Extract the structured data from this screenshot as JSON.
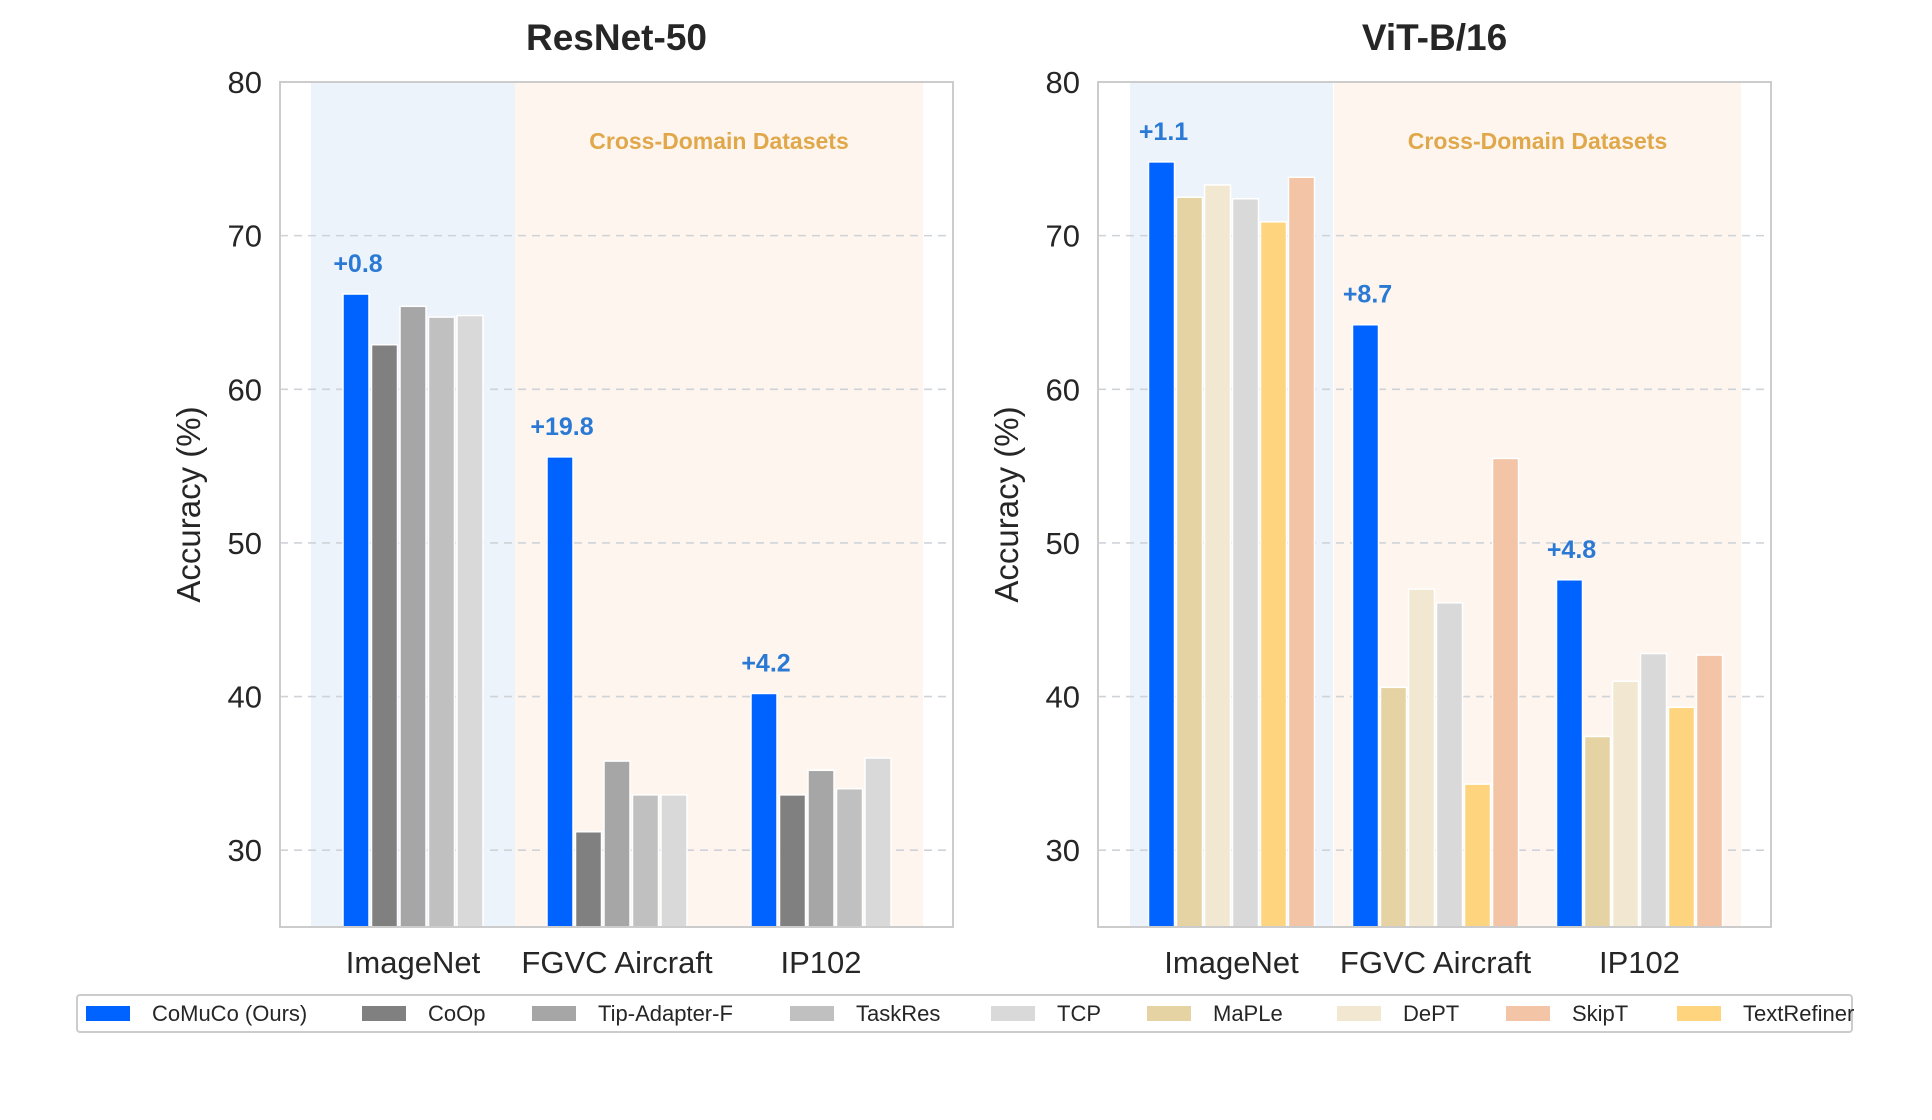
{
  "chart_data": [
    {
      "type": "bar",
      "title": "ResNet-50",
      "ylabel": "Accuracy (%)",
      "xlabel": "",
      "ylim": [
        25,
        80
      ],
      "yticks": [
        30,
        40,
        50,
        60,
        70,
        80
      ],
      "grid": true,
      "categories": [
        "ImageNet",
        "FGVC Aircraft",
        "IP102"
      ],
      "region_label": "Cross-Domain Datasets",
      "series": [
        {
          "name": "CoMuCo (Ours)",
          "values": [
            66.2,
            55.6,
            40.2
          ]
        },
        {
          "name": "CoOp",
          "values": [
            62.9,
            31.2,
            33.6
          ]
        },
        {
          "name": "Tip-Adapter-F",
          "values": [
            65.4,
            35.8,
            35.2
          ]
        },
        {
          "name": "TaskRes",
          "values": [
            64.7,
            33.6,
            34.0
          ]
        },
        {
          "name": "TCP",
          "values": [
            64.8,
            33.6,
            36.0
          ]
        }
      ],
      "annotations": [
        "+0.8",
        "+19.8",
        "+4.2"
      ]
    },
    {
      "type": "bar",
      "title": "ViT-B/16",
      "ylabel": "Accuracy (%)",
      "xlabel": "",
      "ylim": [
        25,
        80
      ],
      "yticks": [
        30,
        40,
        50,
        60,
        70,
        80
      ],
      "grid": true,
      "categories": [
        "ImageNet",
        "FGVC Aircraft",
        "IP102"
      ],
      "region_label": "Cross-Domain Datasets",
      "series": [
        {
          "name": "CoMuCo (Ours)",
          "values": [
            74.8,
            64.2,
            47.6
          ]
        },
        {
          "name": "MaPLe",
          "values": [
            72.5,
            40.6,
            37.4
          ]
        },
        {
          "name": "DePT",
          "values": [
            73.3,
            47.0,
            41.0
          ]
        },
        {
          "name": "TCP",
          "values": [
            72.4,
            46.1,
            42.8
          ]
        },
        {
          "name": "TextRefiner",
          "values": [
            70.9,
            34.3,
            39.3
          ]
        },
        {
          "name": "SkipT",
          "values": [
            73.8,
            55.5,
            42.7
          ]
        }
      ],
      "annotations": [
        "+1.1",
        "+8.7",
        "+4.8"
      ]
    }
  ],
  "legend": [
    {
      "name": "CoMuCo (Ours)",
      "color": "#0062ff"
    },
    {
      "name": "CoOp",
      "color": "#808080"
    },
    {
      "name": "Tip-Adapter-F",
      "color": "#a6a6a6"
    },
    {
      "name": "TaskRes",
      "color": "#c0c0c0"
    },
    {
      "name": "TCP",
      "color": "#d9d9d9"
    },
    {
      "name": "MaPLe",
      "color": "#e6d3a3"
    },
    {
      "name": "DePT",
      "color": "#f2e8d2"
    },
    {
      "name": "SkipT",
      "color": "#f3c4a6"
    },
    {
      "name": "TextRefiner",
      "color": "#fed47e"
    }
  ],
  "colors": {
    "annotation": "#2a7ad5",
    "region_label": "#e0a84a",
    "in_domain_bg": "#edf3fa",
    "cross_domain_bg": "#fdf5ee"
  }
}
